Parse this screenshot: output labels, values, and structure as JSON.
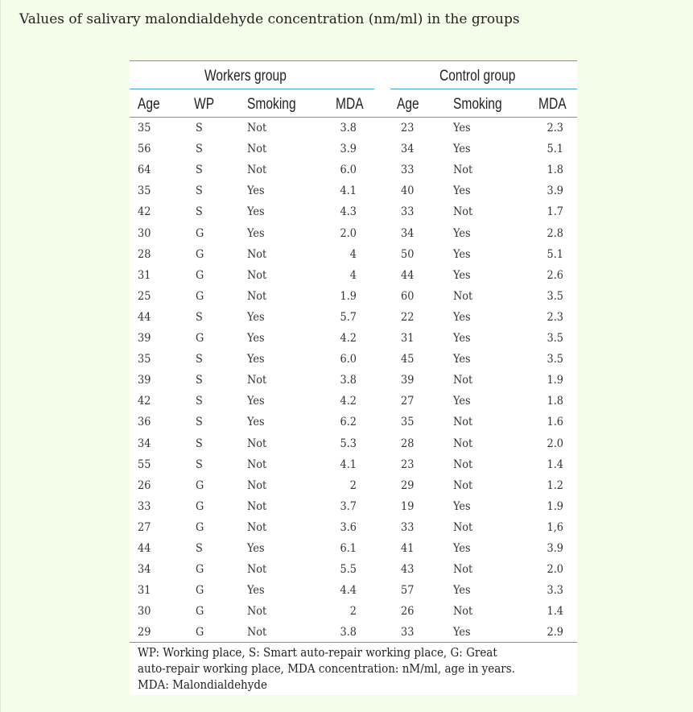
{
  "caption": "Values of salivary malondialdehyde concentration (nm/ml) in the groups",
  "groups": {
    "workers": "Workers group",
    "control": "Control group"
  },
  "columns": {
    "w_age": "Age",
    "w_wp": "WP",
    "w_smoking": "Smoking",
    "w_mda": "MDA",
    "c_age": "Age",
    "c_smoking": "Smoking",
    "c_mda": "MDA"
  },
  "rows": [
    [
      "35",
      "S",
      "Not",
      "3.8",
      "23",
      "Yes",
      "2.3"
    ],
    [
      "56",
      "S",
      "Not",
      "3.9",
      "34",
      "Yes",
      "5.1"
    ],
    [
      "64",
      "S",
      "Not",
      "6.0",
      "33",
      "Not",
      "1.8"
    ],
    [
      "35",
      "S",
      "Yes",
      "4.1",
      "40",
      "Yes",
      "3.9"
    ],
    [
      "42",
      "S",
      "Yes",
      "4.3",
      "33",
      "Not",
      "1.7"
    ],
    [
      "30",
      "G",
      "Yes",
      "2.0",
      "34",
      "Yes",
      "2.8"
    ],
    [
      "28",
      "G",
      "Not",
      "4",
      "50",
      "Yes",
      "5.1"
    ],
    [
      "31",
      "G",
      "Not",
      "4",
      "44",
      "Yes",
      "2.6"
    ],
    [
      "25",
      "G",
      "Not",
      "1.9",
      "60",
      "Not",
      "3.5"
    ],
    [
      "44",
      "S",
      "Yes",
      "5.7",
      "22",
      "Yes",
      "2.3"
    ],
    [
      "39",
      "G",
      "Yes",
      "4.2",
      "31",
      "Yes",
      "3.5"
    ],
    [
      "35",
      "S",
      "Yes",
      "6.0",
      "45",
      "Yes",
      "3.5"
    ],
    [
      "39",
      "S",
      "Not",
      "3.8",
      "39",
      "Not",
      "1.9"
    ],
    [
      "42",
      "S",
      "Yes",
      "4.2",
      "27",
      "Yes",
      "1.8"
    ],
    [
      "36",
      "S",
      "Yes",
      "6.2",
      "35",
      "Not",
      "1.6"
    ],
    [
      "34",
      "S",
      "Not",
      "5.3",
      "28",
      "Not",
      "2.0"
    ],
    [
      "55",
      "S",
      "Not",
      "4.1",
      "23",
      "Not",
      "1.4"
    ],
    [
      "26",
      "G",
      "Not",
      "2",
      "29",
      "Not",
      "1.2"
    ],
    [
      "33",
      "G",
      "Not",
      "3.7",
      "19",
      "Yes",
      "1.9"
    ],
    [
      "27",
      "G",
      "Not",
      "3.6",
      "33",
      "Not",
      "1,6"
    ],
    [
      "44",
      "S",
      "Yes",
      "6.1",
      "41",
      "Yes",
      "3.9"
    ],
    [
      "34",
      "G",
      "Not",
      "5.5",
      "43",
      "Not",
      "2.0"
    ],
    [
      "31",
      "G",
      "Yes",
      "4.4",
      "57",
      "Yes",
      "3.3"
    ],
    [
      "30",
      "G",
      "Not",
      "2",
      "26",
      "Not",
      "1.4"
    ],
    [
      "29",
      "G",
      "Not",
      "3.8",
      "33",
      "Yes",
      "2.9"
    ]
  ],
  "footnote": {
    "line1": "WP: Working place, S: Smart auto-repair working place, G: Great",
    "line2": "auto-repair working place, MDA concentration: nM/ml, age in years.",
    "line3": "MDA: Malondialdehyde"
  }
}
